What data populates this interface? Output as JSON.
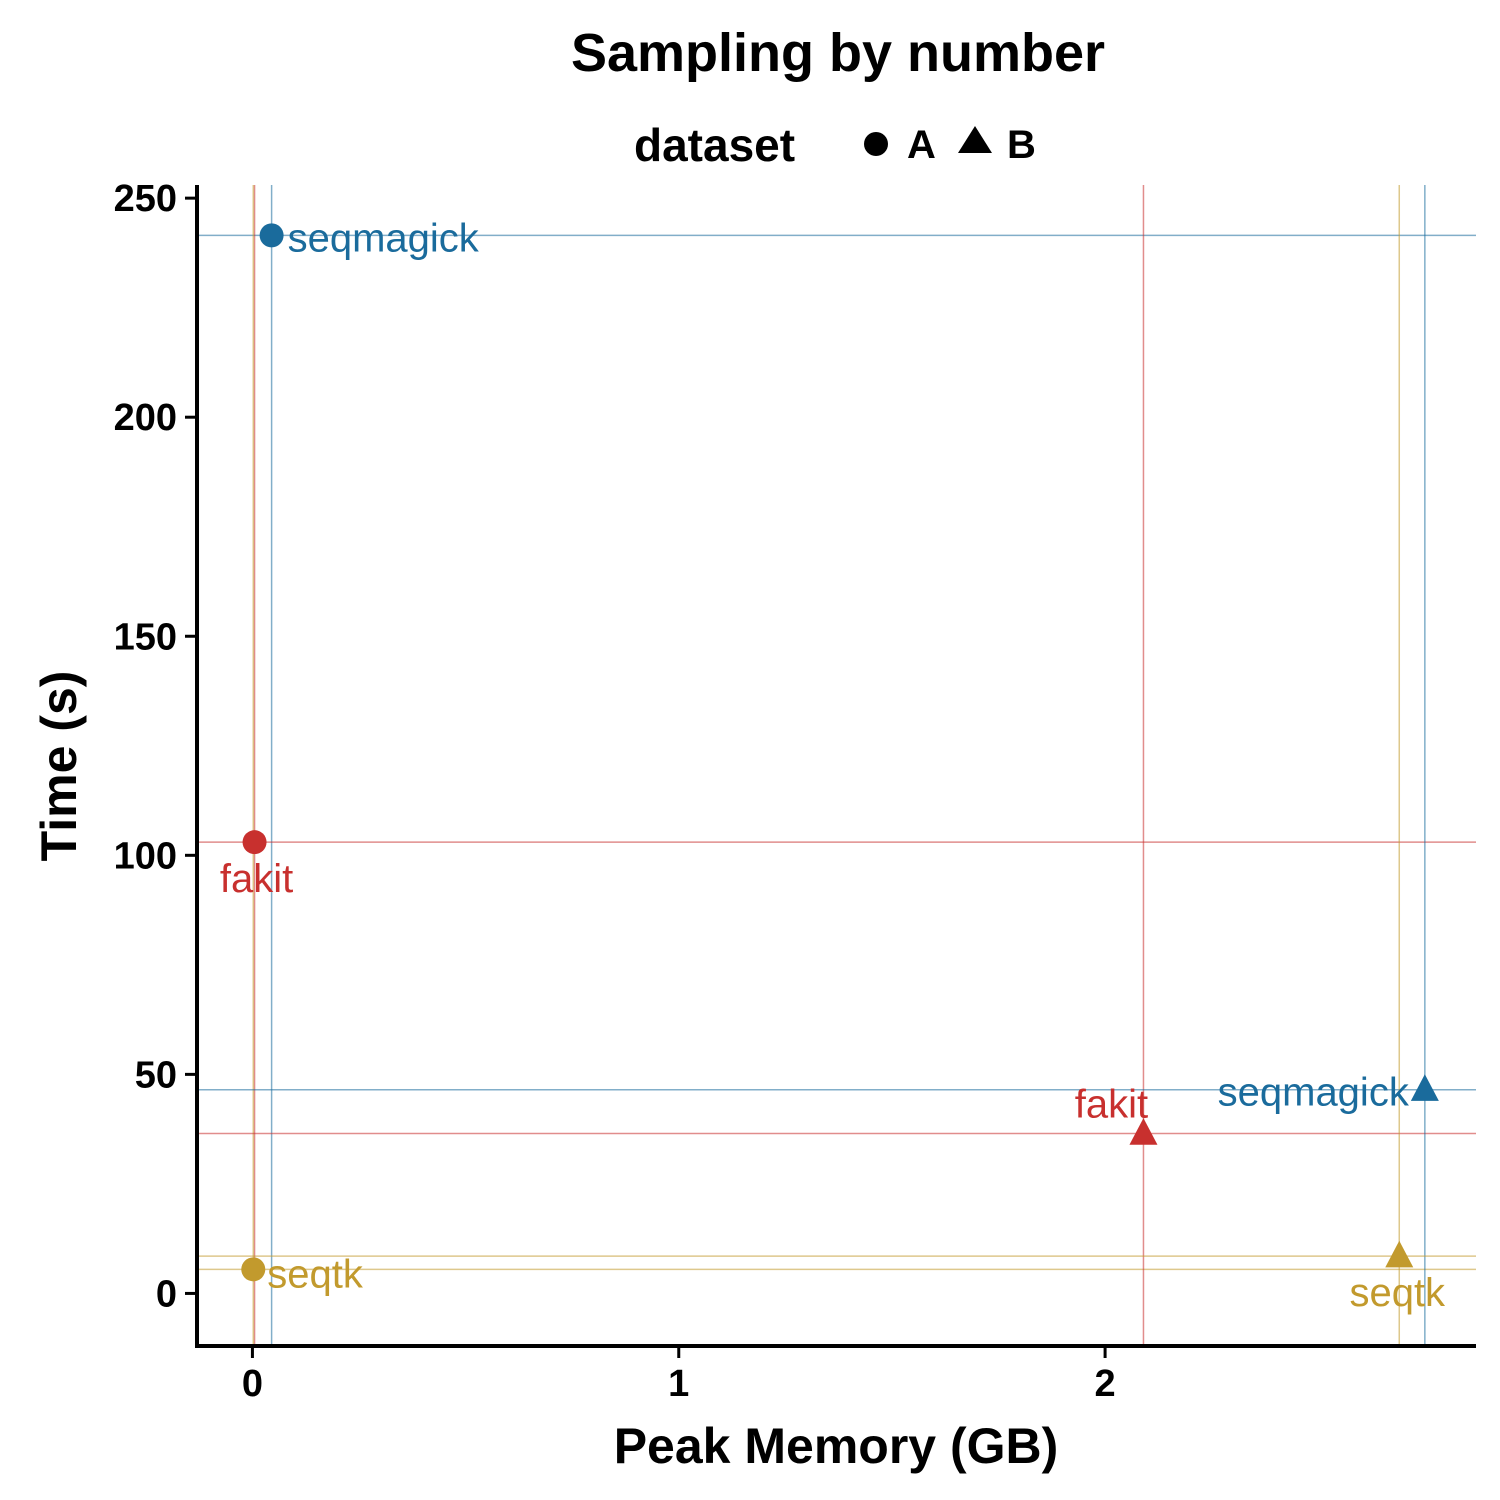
{
  "chart_data": {
    "type": "scatter",
    "title": "Sampling by number",
    "xlabel": "Peak Memory (GB)",
    "ylabel": "Time (s)",
    "xlim": [
      -0.13,
      2.87
    ],
    "ylim": [
      -12,
      253
    ],
    "x_ticks": [
      0,
      1,
      2
    ],
    "y_ticks": [
      0,
      50,
      100,
      150,
      200,
      250
    ],
    "x_tick_labels": [
      "0",
      "1",
      "2"
    ],
    "y_tick_labels": [
      "0",
      "50",
      "100",
      "150",
      "200",
      "250"
    ],
    "grid": false,
    "legend": {
      "title": "dataset",
      "placement": "top",
      "entries": [
        {
          "label": "A",
          "shape": "circle"
        },
        {
          "label": "B",
          "shape": "triangle"
        }
      ]
    },
    "tool_colors": {
      "seqmagick": "#1a6b9c",
      "fakit": "#c8302e",
      "seqtk": "#c29a2d"
    },
    "points": [
      {
        "tool": "seqmagick",
        "dataset": "A",
        "x": 0.045,
        "y": 241.5
      },
      {
        "tool": "fakit",
        "dataset": "A",
        "x": 0.005,
        "y": 103.0
      },
      {
        "tool": "seqtk",
        "dataset": "A",
        "x": 0.002,
        "y": 5.5
      },
      {
        "tool": "fakit",
        "dataset": "B",
        "x": 2.09,
        "y": 36.5
      },
      {
        "tool": "seqmagick",
        "dataset": "B",
        "x": 2.75,
        "y": 46.5
      },
      {
        "tool": "seqtk",
        "dataset": "B",
        "x": 2.69,
        "y": 8.5
      }
    ],
    "point_labels": [
      "seqmagick",
      "fakit",
      "seqtk",
      "fakit",
      "seqmagick",
      "seqtk"
    ]
  }
}
